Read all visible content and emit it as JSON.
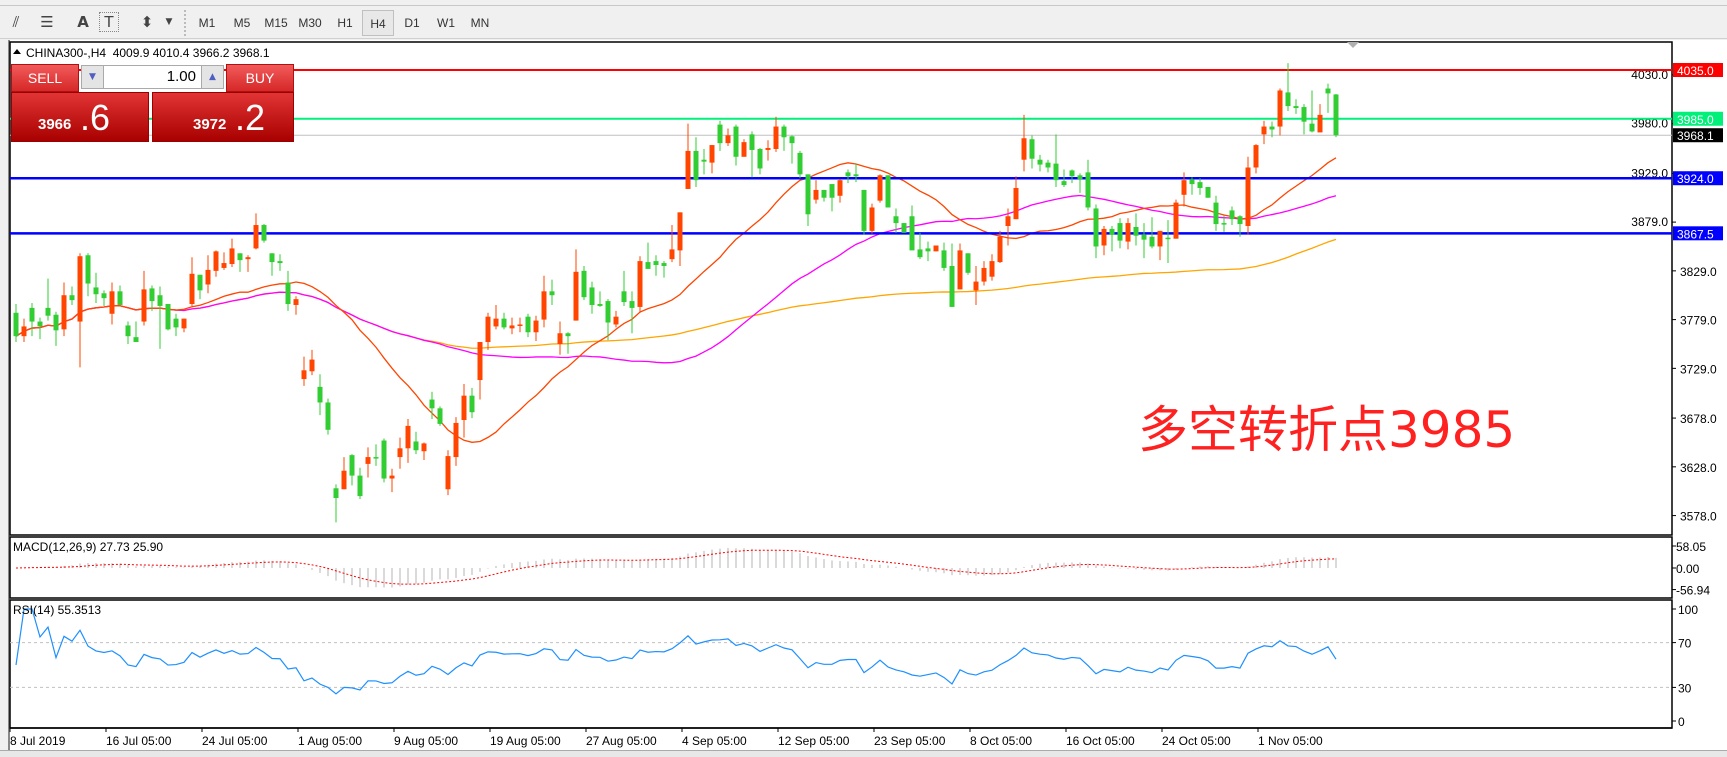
{
  "toolbar": {
    "icons": [
      "fibonacci-expansion-icon",
      "fibonacci-fan-icon",
      "text-icon",
      "text-label-icon",
      "arrows-icon"
    ],
    "icon_glyphs": [
      "⫽",
      "☰",
      "A",
      "T",
      "⬍"
    ],
    "timeframes": [
      "M1",
      "M5",
      "M15",
      "M30",
      "H1",
      "H4",
      "D1",
      "W1",
      "MN"
    ],
    "active_timeframe": "H4"
  },
  "chart_header": {
    "symbol": "CHINA300-,H4",
    "ohlc": "4009.9 4010.4 3966.2 3968.1"
  },
  "one_click": {
    "sell_label": "SELL",
    "buy_label": "BUY",
    "lot": "1.00",
    "sell_price_main": "3966",
    "sell_price_big": ".6",
    "buy_price_main": "3972",
    "buy_price_big": ".2"
  },
  "annotation": "多空转折点3985",
  "indicators": {
    "macd_label": "MACD(12,26,9) 27.73 25.90",
    "rsi_label": "RSI(14) 55.3513"
  },
  "colors": {
    "bull": "#ff4500",
    "bear": "#32cd32",
    "ma_fast": "#ff4500",
    "ma_mid": "#ff00ff",
    "ma_slow": "#ffa500",
    "rsi": "#1e90ff",
    "macd_hist": "#c0c0c0",
    "macd_signal": "#ff0000"
  },
  "chart_data": {
    "type": "candlestick",
    "price_axis": {
      "ylim": [
        3560,
        4052
      ],
      "ticks": [
        "4030.0",
        "3980.0",
        "3929.0",
        "3879.0",
        "3829.0",
        "3779.0",
        "3729.0",
        "3678.0",
        "3628.0",
        "3578.0"
      ]
    },
    "horizontal_lines": [
      {
        "price": 4035.0,
        "label": "4035.0",
        "color": "#ff0000"
      },
      {
        "price": 3985.0,
        "label": "3985.0",
        "color": "#00f07a"
      },
      {
        "price": 3968.1,
        "label": "3968.1",
        "color": "#c0c0c0",
        "label_bg": "#000000"
      },
      {
        "price": 3924.0,
        "label": "3924.0",
        "color": "#0000ff"
      },
      {
        "price": 3867.5,
        "label": "3867.5",
        "color": "#0000ff"
      }
    ],
    "macd_axis": {
      "ticks": [
        "58.05",
        "0.00",
        "-56.94"
      ],
      "ylim": [
        -56.94,
        58.05
      ]
    },
    "rsi_axis": {
      "ticks": [
        "100",
        "70",
        "30",
        "0"
      ],
      "levels": [
        70,
        30
      ]
    },
    "x_labels": [
      "8 Jul 2019",
      "16 Jul 05:00",
      "24 Jul 05:00",
      "1 Aug 05:00",
      "9 Aug 05:00",
      "19 Aug 05:00",
      "27 Aug 05:00",
      "4 Sep 05:00",
      "12 Sep 05:00",
      "23 Sep 05:00",
      "8 Oct 05:00",
      "16 Oct 05:00",
      "24 Oct 05:00",
      "1 Nov 05:00"
    ],
    "ohlc": [
      [
        3786,
        3795,
        3756,
        3762
      ],
      [
        3762,
        3780,
        3756,
        3772
      ],
      [
        3791,
        3796,
        3762,
        3777
      ],
      [
        3777,
        3781,
        3759,
        3772
      ],
      [
        3791,
        3821,
        3778,
        3783
      ],
      [
        3784,
        3787,
        3752,
        3768
      ],
      [
        3769,
        3817,
        3762,
        3804
      ],
      [
        3804,
        3813,
        3794,
        3799
      ],
      [
        3777,
        3847,
        3730,
        3844
      ],
      [
        3845,
        3847,
        3803,
        3816
      ],
      [
        3812,
        3827,
        3796,
        3805
      ],
      [
        3806,
        3809,
        3793,
        3801
      ],
      [
        3785,
        3817,
        3774,
        3808
      ],
      [
        3808,
        3814,
        3794,
        3794
      ],
      [
        3773,
        3777,
        3754,
        3762
      ],
      [
        3761,
        3777,
        3756,
        3756
      ],
      [
        3777,
        3829,
        3773,
        3810
      ],
      [
        3811,
        3814,
        3788,
        3798
      ],
      [
        3804,
        3813,
        3749,
        3793
      ],
      [
        3795,
        3795,
        3768,
        3769
      ],
      [
        3780,
        3785,
        3762,
        3771
      ],
      [
        3770,
        3780,
        3766,
        3780
      ],
      [
        3795,
        3843,
        3793,
        3826
      ],
      [
        3825,
        3825,
        3800,
        3809
      ],
      [
        3815,
        3845,
        3806,
        3830
      ],
      [
        3829,
        3850,
        3823,
        3849
      ],
      [
        3832,
        3848,
        3830,
        3837
      ],
      [
        3836,
        3862,
        3833,
        3852
      ],
      [
        3847,
        3847,
        3828,
        3840
      ],
      [
        3841,
        3845,
        3828,
        3843
      ],
      [
        3852,
        3888,
        3851,
        3876
      ],
      [
        3876,
        3877,
        3858,
        3860
      ],
      [
        3847,
        3847,
        3824,
        3838
      ],
      [
        3839,
        3846,
        3829,
        3837
      ],
      [
        3817,
        3829,
        3788,
        3795
      ],
      [
        3794,
        3803,
        3784,
        3800
      ],
      [
        3718,
        3741,
        3711,
        3727
      ],
      [
        3726,
        3748,
        3722,
        3738
      ],
      [
        3710,
        3723,
        3681,
        3694
      ],
      [
        3694,
        3698,
        3661,
        3666
      ],
      [
        3606,
        3610,
        3571,
        3596
      ],
      [
        3605,
        3638,
        3605,
        3624
      ],
      [
        3640,
        3641,
        3609,
        3619
      ],
      [
        3619,
        3627,
        3595,
        3598
      ],
      [
        3631,
        3648,
        3617,
        3638
      ],
      [
        3638,
        3651,
        3629,
        3637
      ],
      [
        3655,
        3657,
        3612,
        3616
      ],
      [
        3616,
        3626,
        3602,
        3619
      ],
      [
        3638,
        3658,
        3626,
        3647
      ],
      [
        3647,
        3677,
        3632,
        3670
      ],
      [
        3654,
        3664,
        3641,
        3645
      ],
      [
        3644,
        3653,
        3635,
        3652
      ],
      [
        3697,
        3705,
        3677,
        3688
      ],
      [
        3688,
        3690,
        3670,
        3672
      ],
      [
        3605,
        3645,
        3599,
        3639
      ],
      [
        3638,
        3679,
        3629,
        3673
      ],
      [
        3676,
        3713,
        3658,
        3701
      ],
      [
        3701,
        3709,
        3678,
        3684
      ],
      [
        3717,
        3756,
        3697,
        3756
      ],
      [
        3756,
        3786,
        3748,
        3782
      ],
      [
        3772,
        3794,
        3769,
        3780
      ],
      [
        3780,
        3786,
        3769,
        3771
      ],
      [
        3770,
        3781,
        3764,
        3773
      ],
      [
        3773,
        3781,
        3766,
        3774
      ],
      [
        3782,
        3785,
        3761,
        3766
      ],
      [
        3766,
        3783,
        3757,
        3778
      ],
      [
        3779,
        3824,
        3771,
        3808
      ],
      [
        3808,
        3820,
        3794,
        3804
      ],
      [
        3754,
        3777,
        3743,
        3765
      ],
      [
        3765,
        3766,
        3744,
        3762
      ],
      [
        3778,
        3851,
        3778,
        3828
      ],
      [
        3829,
        3834,
        3799,
        3802
      ],
      [
        3812,
        3818,
        3785,
        3794
      ],
      [
        3795,
        3808,
        3792,
        3793
      ],
      [
        3798,
        3800,
        3758,
        3776
      ],
      [
        3774,
        3788,
        3771,
        3782
      ],
      [
        3808,
        3829,
        3793,
        3797
      ],
      [
        3798,
        3808,
        3765,
        3791
      ],
      [
        3792,
        3844,
        3786,
        3839
      ],
      [
        3838,
        3858,
        3831,
        3831
      ],
      [
        3839,
        3845,
        3824,
        3835
      ],
      [
        3837,
        3839,
        3822,
        3834
      ],
      [
        3841,
        3876,
        3838,
        3851
      ],
      [
        3850,
        3889,
        3834,
        3889
      ],
      [
        3913,
        3980,
        3913,
        3952
      ],
      [
        3952,
        3966,
        3915,
        3922
      ],
      [
        3943,
        3954,
        3928,
        3941
      ],
      [
        3940,
        3958,
        3929,
        3958
      ],
      [
        3979,
        3983,
        3952,
        3960
      ],
      [
        3960,
        3975,
        3957,
        3968
      ],
      [
        3977,
        3979,
        3937,
        3946
      ],
      [
        3946,
        3964,
        3946,
        3961
      ],
      [
        3969,
        3972,
        3925,
        3953
      ],
      [
        3954,
        3955,
        3928,
        3934
      ],
      [
        3953,
        3963,
        3942,
        3955
      ],
      [
        3954,
        3987,
        3951,
        3977
      ],
      [
        3977,
        3979,
        3952,
        3966
      ],
      [
        3967,
        3968,
        3939,
        3960
      ],
      [
        3950,
        3952,
        3924,
        3928
      ],
      [
        3928,
        3928,
        3875,
        3887
      ],
      [
        3902,
        3922,
        3898,
        3912
      ],
      [
        3912,
        3912,
        3900,
        3904
      ],
      [
        3918,
        3918,
        3890,
        3904
      ],
      [
        3906,
        3923,
        3899,
        3922
      ],
      [
        3930,
        3933,
        3919,
        3926
      ],
      [
        3928,
        3939,
        3920,
        3926
      ],
      [
        3912,
        3912,
        3866,
        3870
      ],
      [
        3870,
        3898,
        3867,
        3894
      ],
      [
        3901,
        3928,
        3899,
        3927
      ],
      [
        3927,
        3927,
        3894,
        3894
      ],
      [
        3885,
        3893,
        3868,
        3878
      ],
      [
        3878,
        3878,
        3868,
        3868
      ],
      [
        3885,
        3896,
        3850,
        3850
      ],
      [
        3851,
        3868,
        3841,
        3843
      ],
      [
        3852,
        3859,
        3839,
        3849
      ],
      [
        3849,
        3855,
        3849,
        3855
      ],
      [
        3850,
        3858,
        3829,
        3832
      ],
      [
        3834,
        3857,
        3792,
        3792
      ],
      [
        3810,
        3857,
        3810,
        3850
      ],
      [
        3847,
        3847,
        3825,
        3827
      ],
      [
        3809,
        3834,
        3794,
        3818
      ],
      [
        3818,
        3839,
        3814,
        3832
      ],
      [
        3823,
        3846,
        3819,
        3839
      ],
      [
        3838,
        3870,
        3837,
        3864
      ],
      [
        3875,
        3893,
        3855,
        3885
      ],
      [
        3882,
        3926,
        3882,
        3914
      ],
      [
        3943,
        3989,
        3931,
        3965
      ],
      [
        3964,
        3968,
        3934,
        3944
      ],
      [
        3943,
        3948,
        3931,
        3938
      ],
      [
        3940,
        3943,
        3930,
        3935
      ],
      [
        3939,
        3969,
        3915,
        3922
      ],
      [
        3921,
        3933,
        3915,
        3917
      ],
      [
        3932,
        3933,
        3919,
        3926
      ],
      [
        3927,
        3929,
        3909,
        3923
      ],
      [
        3930,
        3943,
        3891,
        3894
      ],
      [
        3893,
        3897,
        3842,
        3854
      ],
      [
        3855,
        3875,
        3845,
        3872
      ],
      [
        3872,
        3875,
        3849,
        3866
      ],
      [
        3878,
        3883,
        3852,
        3860
      ],
      [
        3859,
        3883,
        3851,
        3878
      ],
      [
        3874,
        3888,
        3855,
        3865
      ],
      [
        3866,
        3878,
        3842,
        3861
      ],
      [
        3864,
        3884,
        3852,
        3854
      ],
      [
        3854,
        3870,
        3840,
        3870
      ],
      [
        3863,
        3881,
        3837,
        3862
      ],
      [
        3862,
        3902,
        3862,
        3899
      ],
      [
        3907,
        3930,
        3895,
        3922
      ],
      [
        3923,
        3925,
        3907,
        3918
      ],
      [
        3920,
        3924,
        3907,
        3914
      ],
      [
        3915,
        3915,
        3904,
        3904
      ],
      [
        3899,
        3906,
        3870,
        3877
      ],
      [
        3878,
        3886,
        3869,
        3877
      ],
      [
        3891,
        3895,
        3876,
        3882
      ],
      [
        3885,
        3886,
        3864,
        3877
      ],
      [
        3875,
        3946,
        3866,
        3935
      ],
      [
        3935,
        3959,
        3929,
        3958
      ],
      [
        3969,
        3983,
        3959,
        3977
      ],
      [
        3977,
        3982,
        3966,
        3974
      ],
      [
        3977,
        4016,
        3968,
        4014
      ],
      [
        4012,
        4042,
        3993,
        3998
      ],
      [
        3998,
        4005,
        3990,
        3996
      ],
      [
        3997,
        4000,
        3969,
        3982
      ],
      [
        3980,
        4014,
        3971,
        3972
      ],
      [
        3971,
        4000,
        3971,
        3989
      ],
      [
        4016,
        4021,
        3991,
        4011
      ],
      [
        4009.9,
        4010.4,
        3966.2,
        3968.1
      ]
    ]
  }
}
